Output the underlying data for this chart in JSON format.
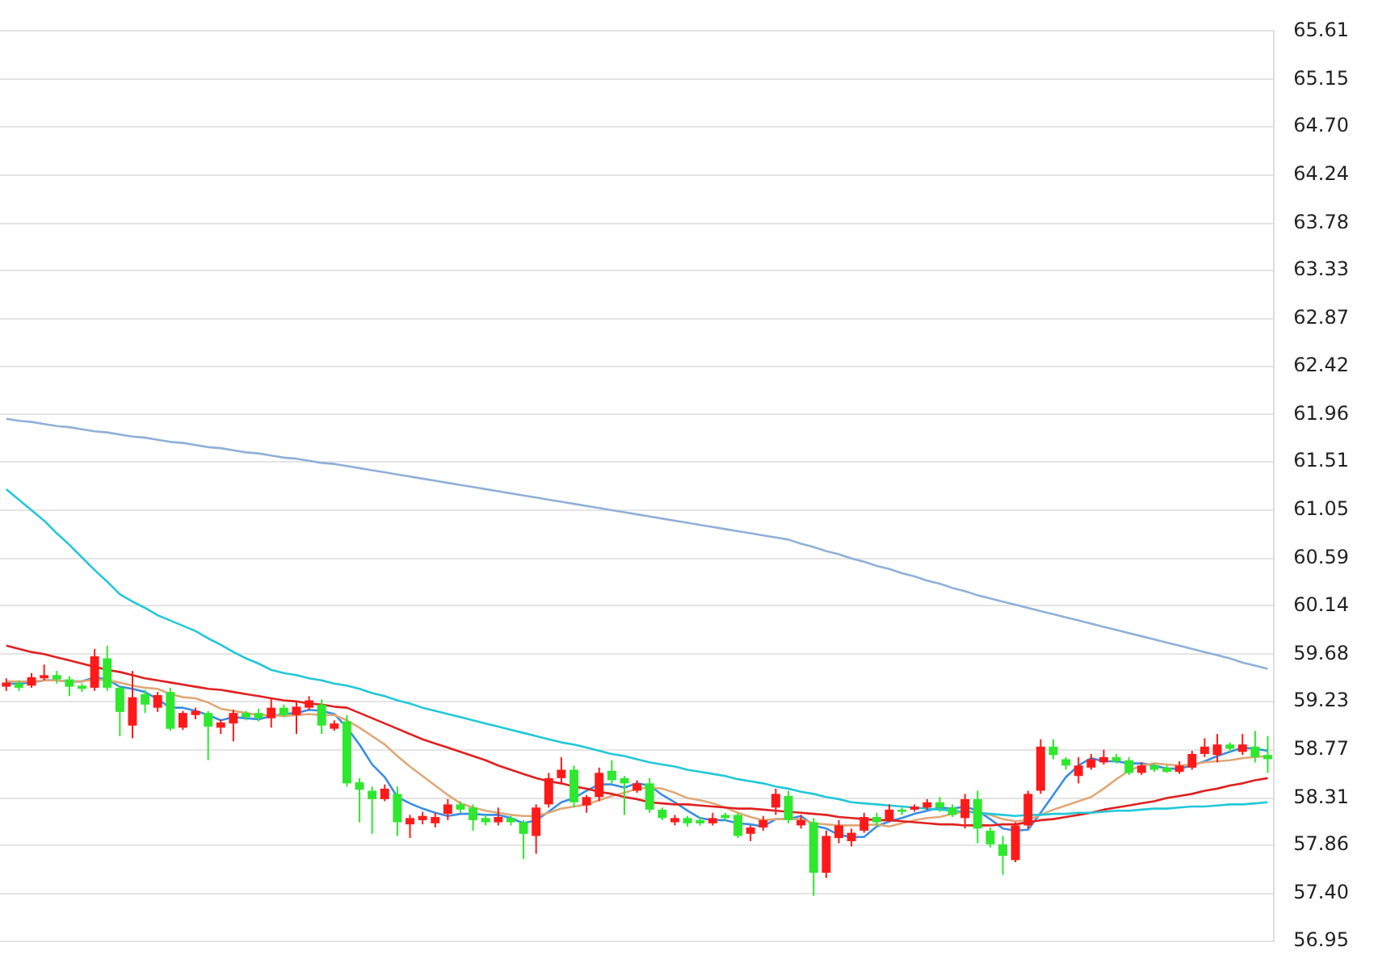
{
  "chart_data": {
    "type": "candlestick",
    "categories": [
      null,
      null,
      null,
      null,
      null,
      null,
      null,
      null,
      null,
      null,
      null,
      null,
      null,
      null,
      null,
      null,
      null,
      null,
      null,
      null,
      null,
      null,
      null,
      null,
      null,
      null,
      null,
      null,
      null,
      null,
      null,
      null,
      null,
      null,
      null,
      null,
      null,
      null,
      null,
      null,
      null,
      null,
      null,
      null,
      null,
      null,
      null,
      null,
      null,
      null,
      null,
      null,
      null,
      null,
      null,
      null,
      null,
      null,
      null,
      null,
      null,
      null,
      null,
      null,
      null,
      null,
      null,
      null,
      null,
      null,
      null,
      null,
      null,
      null,
      null,
      null,
      null,
      null,
      null,
      null,
      null,
      null,
      null,
      null,
      null,
      null,
      null,
      null,
      null,
      null,
      null,
      null,
      null,
      null,
      null,
      null,
      null,
      null,
      null,
      null,
      null
    ],
    "ohlc": [
      [
        59.37,
        59.45,
        59.33,
        59.41
      ],
      [
        59.4,
        59.43,
        59.33,
        59.36
      ],
      [
        59.38,
        59.5,
        59.36,
        59.46
      ],
      [
        59.45,
        59.58,
        59.43,
        59.48
      ],
      [
        59.48,
        59.52,
        59.4,
        59.44
      ],
      [
        59.44,
        59.47,
        59.28,
        59.37
      ],
      [
        59.38,
        59.4,
        59.32,
        59.35
      ],
      [
        59.36,
        59.73,
        59.33,
        59.66
      ],
      [
        59.64,
        59.76,
        59.33,
        59.36
      ],
      [
        59.36,
        59.38,
        58.9,
        59.13
      ],
      [
        59.0,
        59.52,
        58.88,
        59.27
      ],
      [
        59.3,
        59.34,
        59.12,
        59.2
      ],
      [
        59.17,
        59.32,
        59.13,
        59.29
      ],
      [
        59.32,
        59.36,
        58.95,
        58.97
      ],
      [
        58.98,
        59.14,
        58.96,
        59.12
      ],
      [
        59.1,
        59.17,
        59.06,
        59.14
      ],
      [
        59.12,
        59.14,
        58.67,
        58.99
      ],
      [
        58.98,
        59.06,
        58.92,
        59.03
      ],
      [
        59.02,
        59.15,
        58.85,
        59.12
      ],
      [
        59.12,
        59.14,
        59.05,
        59.08
      ],
      [
        59.12,
        59.16,
        59.04,
        59.07
      ],
      [
        59.07,
        59.25,
        58.98,
        59.17
      ],
      [
        59.17,
        59.2,
        59.08,
        59.1
      ],
      [
        59.1,
        59.22,
        58.92,
        59.18
      ],
      [
        59.17,
        59.28,
        59.15,
        59.24
      ],
      [
        59.2,
        59.25,
        58.92,
        59.0
      ],
      [
        58.97,
        59.05,
        58.95,
        59.02
      ],
      [
        59.04,
        59.1,
        58.42,
        58.45
      ],
      [
        58.46,
        58.5,
        58.08,
        58.39
      ],
      [
        58.38,
        58.42,
        57.97,
        58.3
      ],
      [
        58.3,
        58.44,
        58.28,
        58.4
      ],
      [
        58.35,
        58.42,
        57.95,
        58.08
      ],
      [
        58.06,
        58.15,
        57.93,
        58.12
      ],
      [
        58.1,
        58.18,
        58.06,
        58.14
      ],
      [
        58.07,
        58.17,
        58.03,
        58.13
      ],
      [
        58.16,
        58.3,
        58.1,
        58.25
      ],
      [
        58.25,
        58.28,
        58.17,
        58.2
      ],
      [
        58.22,
        58.25,
        58.0,
        58.1
      ],
      [
        58.12,
        58.15,
        58.05,
        58.08
      ],
      [
        58.08,
        58.22,
        58.05,
        58.13
      ],
      [
        58.12,
        58.14,
        58.05,
        58.08
      ],
      [
        58.08,
        58.1,
        57.73,
        57.97
      ],
      [
        57.95,
        58.25,
        57.78,
        58.22
      ],
      [
        58.25,
        58.55,
        58.22,
        58.5
      ],
      [
        58.5,
        58.7,
        58.45,
        58.58
      ],
      [
        58.58,
        58.62,
        58.22,
        58.27
      ],
      [
        58.24,
        58.34,
        58.17,
        58.32
      ],
      [
        58.32,
        58.6,
        58.28,
        58.55
      ],
      [
        58.57,
        58.67,
        58.45,
        58.48
      ],
      [
        58.5,
        58.52,
        58.15,
        58.45
      ],
      [
        58.38,
        58.48,
        58.36,
        58.45
      ],
      [
        58.45,
        58.5,
        58.17,
        58.2
      ],
      [
        58.2,
        58.22,
        58.1,
        58.12
      ],
      [
        58.08,
        58.15,
        58.05,
        58.12
      ],
      [
        58.12,
        58.14,
        58.04,
        58.07
      ],
      [
        58.1,
        58.13,
        58.05,
        58.07
      ],
      [
        58.07,
        58.17,
        58.05,
        58.12
      ],
      [
        58.15,
        58.17,
        58.1,
        58.12
      ],
      [
        58.15,
        58.17,
        57.93,
        57.95
      ],
      [
        57.97,
        58.05,
        57.9,
        58.03
      ],
      [
        58.03,
        58.14,
        58.0,
        58.1
      ],
      [
        58.22,
        58.4,
        58.15,
        58.35
      ],
      [
        58.33,
        58.38,
        58.07,
        58.1
      ],
      [
        58.05,
        58.15,
        58.02,
        58.1
      ],
      [
        58.08,
        58.12,
        57.38,
        57.6
      ],
      [
        57.6,
        58.0,
        57.55,
        57.95
      ],
      [
        57.93,
        58.1,
        57.88,
        58.05
      ],
      [
        57.9,
        58.02,
        57.85,
        57.98
      ],
      [
        58.0,
        58.17,
        57.98,
        58.13
      ],
      [
        58.13,
        58.17,
        58.05,
        58.08
      ],
      [
        58.1,
        58.25,
        58.08,
        58.2
      ],
      [
        58.2,
        58.22,
        58.15,
        58.18
      ],
      [
        58.2,
        58.25,
        58.18,
        58.23
      ],
      [
        58.22,
        58.3,
        58.2,
        58.27
      ],
      [
        58.27,
        58.32,
        58.18,
        58.22
      ],
      [
        58.22,
        58.25,
        58.13,
        58.15
      ],
      [
        58.12,
        58.35,
        58.02,
        58.3
      ],
      [
        58.3,
        58.38,
        57.88,
        58.02
      ],
      [
        58.0,
        58.03,
        57.84,
        57.87
      ],
      [
        57.87,
        57.95,
        57.58,
        57.76
      ],
      [
        57.72,
        58.08,
        57.7,
        58.05
      ],
      [
        58.05,
        58.38,
        58.02,
        58.35
      ],
      [
        58.38,
        58.87,
        58.35,
        58.8
      ],
      [
        58.8,
        58.87,
        58.68,
        58.72
      ],
      [
        58.68,
        58.7,
        58.58,
        58.62
      ],
      [
        58.52,
        58.7,
        58.45,
        58.62
      ],
      [
        58.6,
        58.73,
        58.58,
        58.68
      ],
      [
        58.65,
        58.77,
        58.63,
        58.7
      ],
      [
        58.7,
        58.73,
        58.64,
        58.66
      ],
      [
        58.67,
        58.7,
        58.53,
        58.55
      ],
      [
        58.55,
        58.65,
        58.53,
        58.62
      ],
      [
        58.62,
        58.64,
        58.56,
        58.58
      ],
      [
        58.6,
        58.62,
        58.55,
        58.56
      ],
      [
        58.56,
        58.66,
        58.54,
        58.62
      ],
      [
        58.6,
        58.76,
        58.58,
        58.73
      ],
      [
        58.73,
        58.88,
        58.7,
        58.8
      ],
      [
        58.72,
        58.92,
        58.65,
        58.82
      ],
      [
        58.82,
        58.84,
        58.75,
        58.78
      ],
      [
        58.75,
        58.92,
        58.72,
        58.82
      ],
      [
        58.8,
        58.95,
        58.65,
        58.7
      ],
      [
        58.72,
        58.9,
        58.55,
        58.68
      ]
    ],
    "colors": [
      "#ff1a1a",
      "#2ee82e",
      "#ff1a1a",
      "#ff1a1a",
      "#2ee82e",
      "#2ee82e",
      "#2ee82e",
      "#ff1a1a",
      "#2ee82e",
      "#2ee82e",
      "#ff1a1a",
      "#2ee82e",
      "#ff1a1a",
      "#2ee82e",
      "#ff1a1a",
      "#ff1a1a",
      "#2ee82e",
      "#ff1a1a",
      "#ff1a1a",
      "#2ee82e",
      "#2ee82e",
      "#ff1a1a",
      "#2ee82e",
      "#ff1a1a",
      "#ff1a1a",
      "#2ee82e",
      "#ff1a1a",
      "#2ee82e",
      "#2ee82e",
      "#2ee82e",
      "#ff1a1a",
      "#2ee82e",
      "#ff1a1a",
      "#ff1a1a",
      "#ff1a1a",
      "#ff1a1a",
      "#2ee82e",
      "#2ee82e",
      "#2ee82e",
      "#ff1a1a",
      "#2ee82e",
      "#2ee82e",
      "#ff1a1a",
      "#ff1a1a",
      "#ff1a1a",
      "#2ee82e",
      "#ff1a1a",
      "#ff1a1a",
      "#2ee82e",
      "#2ee82e",
      "#ff1a1a",
      "#2ee82e",
      "#2ee82e",
      "#ff1a1a",
      "#2ee82e",
      "#2ee82e",
      "#ff1a1a",
      "#2ee82e",
      "#2ee82e",
      "#ff1a1a",
      "#ff1a1a",
      "#ff1a1a",
      "#2ee82e",
      "#ff1a1a",
      "#2ee82e",
      "#ff1a1a",
      "#ff1a1a",
      "#ff1a1a",
      "#ff1a1a",
      "#2ee82e",
      "#ff1a1a",
      "#2ee82e",
      "#ff1a1a",
      "#ff1a1a",
      "#2ee82e",
      "#2ee82e",
      "#ff1a1a",
      "#2ee82e",
      "#2ee82e",
      "#2ee82e",
      "#ff1a1a",
      "#ff1a1a",
      "#ff1a1a",
      "#2ee82e",
      "#2ee82e",
      "#ff1a1a",
      "#ff1a1a",
      "#ff1a1a",
      "#2ee82e",
      "#2ee82e",
      "#ff1a1a",
      "#2ee82e",
      "#2ee82e",
      "#ff1a1a",
      "#ff1a1a",
      "#ff1a1a",
      "#ff1a1a",
      "#2ee82e",
      "#ff1a1a",
      "#2ee82e",
      "#2ee82e"
    ],
    "series": [
      {
        "type": "line",
        "color": "#8fb0d8",
        "values": [
          61.92,
          61.9,
          61.89,
          61.87,
          61.85,
          61.84,
          61.82,
          61.8,
          61.79,
          61.77,
          61.75,
          61.74,
          61.72,
          61.7,
          61.69,
          61.67,
          61.65,
          61.64,
          61.62,
          61.6,
          61.59,
          61.57,
          61.55,
          61.54,
          61.52,
          61.5,
          61.49,
          61.47,
          61.45,
          61.43,
          61.41,
          61.39,
          61.37,
          61.35,
          61.33,
          61.31,
          61.29,
          61.27,
          61.25,
          61.23,
          61.21,
          61.19,
          61.17,
          61.15,
          61.13,
          61.11,
          61.09,
          61.07,
          61.05,
          61.03,
          61.01,
          60.99,
          60.97,
          60.95,
          60.93,
          60.91,
          60.89,
          60.87,
          60.85,
          60.83,
          60.81,
          60.79,
          60.77,
          60.73,
          60.7,
          60.66,
          60.63,
          60.59,
          60.56,
          60.52,
          60.49,
          60.45,
          60.42,
          60.38,
          60.35,
          60.31,
          60.28,
          60.24,
          60.21,
          60.18,
          60.15,
          60.12,
          60.09,
          60.06,
          60.03,
          60.0,
          59.97,
          59.94,
          59.91,
          59.88,
          59.85,
          59.82,
          59.79,
          59.76,
          59.73,
          59.7,
          59.67,
          59.64,
          59.6,
          59.57,
          59.54
        ]
      },
      {
        "type": "line",
        "color": "#22c8d8",
        "values": [
          61.25,
          61.15,
          61.05,
          60.95,
          60.83,
          60.72,
          60.6,
          60.48,
          60.37,
          60.25,
          60.18,
          60.12,
          60.05,
          60.0,
          59.95,
          59.9,
          59.83,
          59.77,
          59.7,
          59.64,
          59.59,
          59.53,
          59.5,
          59.48,
          59.45,
          59.43,
          59.4,
          59.38,
          59.35,
          59.31,
          59.28,
          59.24,
          59.21,
          59.17,
          59.14,
          59.11,
          59.08,
          59.05,
          59.02,
          58.99,
          58.96,
          58.93,
          58.9,
          58.87,
          58.84,
          58.82,
          58.79,
          58.76,
          58.73,
          58.71,
          58.68,
          58.65,
          58.63,
          58.61,
          58.58,
          58.56,
          58.54,
          58.52,
          58.49,
          58.47,
          58.45,
          58.42,
          58.4,
          58.37,
          58.35,
          58.32,
          58.3,
          58.27,
          58.26,
          58.25,
          58.24,
          58.23,
          58.22,
          58.21,
          58.2,
          58.19,
          58.18,
          58.17,
          58.16,
          58.15,
          58.14,
          58.15,
          58.15,
          58.16,
          58.16,
          58.17,
          58.17,
          58.18,
          58.19,
          58.19,
          58.2,
          58.21,
          58.21,
          58.22,
          58.23,
          58.23,
          58.24,
          58.25,
          58.25,
          58.26,
          58.27
        ]
      },
      {
        "type": "line",
        "color": "#e02020",
        "values": [
          59.76,
          59.73,
          59.7,
          59.68,
          59.65,
          59.62,
          59.59,
          59.56,
          59.53,
          59.51,
          59.48,
          59.45,
          59.43,
          59.41,
          59.39,
          59.37,
          59.35,
          59.34,
          59.32,
          59.3,
          59.28,
          59.26,
          59.24,
          59.23,
          59.21,
          59.2,
          59.18,
          59.17,
          59.12,
          59.07,
          59.02,
          58.97,
          58.92,
          58.87,
          58.83,
          58.79,
          58.75,
          58.71,
          58.67,
          58.62,
          58.58,
          58.54,
          58.5,
          58.47,
          58.45,
          58.42,
          58.4,
          58.37,
          58.35,
          58.32,
          58.3,
          58.27,
          58.26,
          58.25,
          58.25,
          58.24,
          58.23,
          58.22,
          58.21,
          58.21,
          58.2,
          58.19,
          58.18,
          58.17,
          58.16,
          58.15,
          58.13,
          58.12,
          58.11,
          58.1,
          58.1,
          58.09,
          58.08,
          58.07,
          58.06,
          58.06,
          58.05,
          58.05,
          58.05,
          58.06,
          58.06,
          58.08,
          58.1,
          58.11,
          58.13,
          58.15,
          58.17,
          58.2,
          58.22,
          58.24,
          58.26,
          58.28,
          58.31,
          58.33,
          58.35,
          58.38,
          58.4,
          58.43,
          58.45,
          58.48,
          58.5
        ]
      },
      {
        "type": "line",
        "color": "#e0a878",
        "values": [
          59.42,
          59.42,
          59.42,
          59.43,
          59.43,
          59.42,
          59.42,
          59.44,
          59.43,
          59.41,
          59.38,
          59.36,
          59.35,
          59.3,
          59.27,
          59.26,
          59.22,
          59.16,
          59.14,
          59.12,
          59.1,
          59.1,
          59.09,
          59.1,
          59.11,
          59.1,
          59.1,
          59.05,
          58.98,
          58.9,
          58.82,
          58.71,
          58.61,
          58.52,
          58.43,
          58.34,
          58.26,
          58.22,
          58.19,
          58.17,
          58.15,
          58.14,
          58.14,
          58.17,
          58.21,
          58.23,
          58.25,
          58.29,
          58.33,
          58.36,
          58.4,
          58.41,
          58.4,
          58.36,
          58.31,
          58.29,
          58.26,
          58.22,
          58.17,
          58.13,
          58.1,
          58.11,
          58.11,
          58.11,
          58.07,
          58.06,
          58.05,
          58.05,
          58.05,
          58.06,
          58.04,
          58.07,
          58.1,
          58.12,
          58.13,
          58.16,
          58.18,
          58.18,
          58.15,
          58.11,
          58.09,
          58.1,
          58.15,
          58.2,
          58.24,
          58.28,
          58.32,
          58.4,
          58.49,
          58.57,
          58.62,
          58.64,
          58.63,
          58.62,
          58.63,
          58.65,
          58.66,
          58.67,
          58.69,
          58.7,
          58.71
        ]
      },
      {
        "type": "line",
        "color": "#3a8ee6",
        "values": [
          59.4,
          59.4,
          59.41,
          59.43,
          59.43,
          59.42,
          59.42,
          59.46,
          59.44,
          59.37,
          59.35,
          59.32,
          59.25,
          59.17,
          59.17,
          59.14,
          59.1,
          59.05,
          59.08,
          59.07,
          59.06,
          59.09,
          59.11,
          59.12,
          59.15,
          59.14,
          59.11,
          58.98,
          58.82,
          58.63,
          58.51,
          58.32,
          58.26,
          58.21,
          58.17,
          58.14,
          58.16,
          58.16,
          58.15,
          58.15,
          58.12,
          58.07,
          58.1,
          58.18,
          58.27,
          58.31,
          58.38,
          58.44,
          58.44,
          58.41,
          58.45,
          58.43,
          58.34,
          58.27,
          58.19,
          58.12,
          58.1,
          58.1,
          58.07,
          58.06,
          58.04,
          58.11,
          58.11,
          58.14,
          58.05,
          58.02,
          57.96,
          57.94,
          57.94,
          58.04,
          58.09,
          58.12,
          58.16,
          58.19,
          58.22,
          58.21,
          58.23,
          58.19,
          58.11,
          58.02,
          58.0,
          58.01,
          58.17,
          58.34,
          58.51,
          58.62,
          58.69,
          58.66,
          58.66,
          58.64,
          58.64,
          58.62,
          58.59,
          58.59,
          58.62,
          58.66,
          58.71,
          58.75,
          58.79,
          58.78,
          58.76
        ]
      }
    ],
    "ylim": [
      56.95,
      65.61
    ],
    "yticks": [
      56.95,
      {
        "value": 57.4,
        "label": "57.40"
      },
      57.86,
      58.31,
      58.77,
      59.23,
      59.68,
      60.14,
      60.59,
      61.05,
      61.51,
      61.96,
      62.42,
      62.87,
      63.33,
      63.78,
      64.24,
      {
        "value": 64.7,
        "label": "64.70"
      },
      65.15,
      65.61
    ],
    "grid": "y",
    "tick_labels": "y",
    "legend": false,
    "marker": "none",
    "line_style": "solid"
  }
}
